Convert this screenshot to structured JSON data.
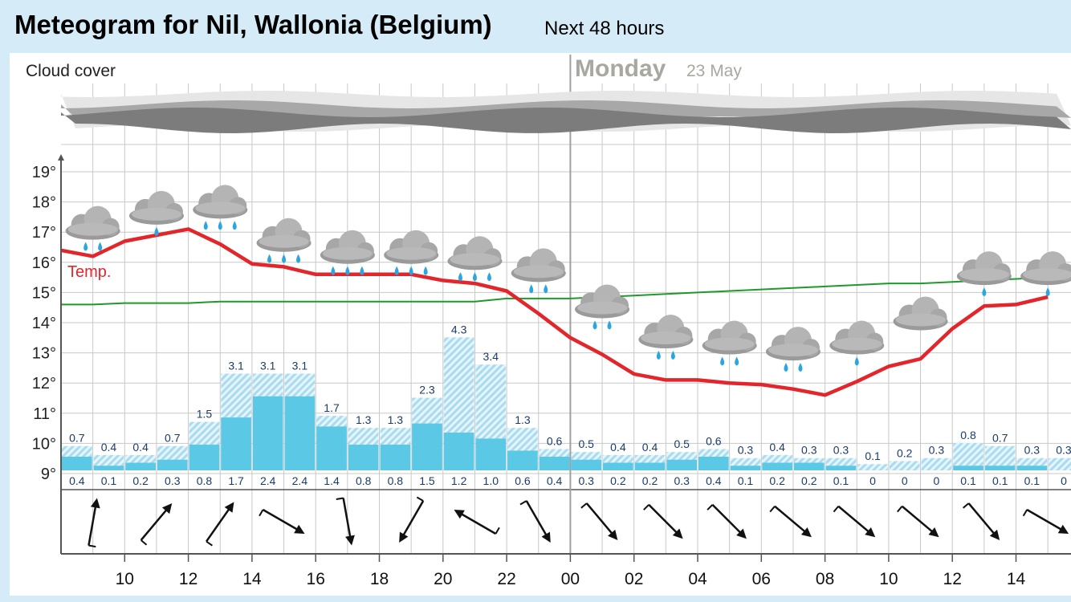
{
  "header": {
    "title": "Meteogram for Nil, Wallonia (Belgium)",
    "subtitle": "Next 48 hours"
  },
  "colors": {
    "temperature_line": "#e3262b",
    "dewpoint_line": "#1f9a2a",
    "precip_min": "#5bc8e6",
    "precip_max_hatch": "#a9dcef",
    "grid": "#c8c8c8",
    "day_separator": "#a0a0a0",
    "cloud_light": "#e6e6e6",
    "cloud_mid": "#a8a8a8",
    "cloud_dark": "#7c7c7c"
  },
  "chart_data": {
    "type": "line",
    "title": "Meteogram for Nil, Wallonia (Belgium)",
    "subtitle": "Next 48 hours",
    "cloud_label": "Cloud cover",
    "day_label": "Monday",
    "day_date": "23 May",
    "temp_label": "Temp.",
    "x_tick_labels": [
      "10",
      "12",
      "14",
      "16",
      "18",
      "20",
      "22",
      "00",
      "02",
      "04",
      "06",
      "08",
      "10",
      "12",
      "14"
    ],
    "y_ticks": [
      9,
      10,
      11,
      12,
      13,
      14,
      15,
      16,
      17,
      18,
      19
    ],
    "y_unit": "°",
    "ylim": [
      8.7,
      19.3
    ],
    "grid": true,
    "hours": [
      8,
      9,
      10,
      11,
      12,
      13,
      14,
      15,
      16,
      17,
      18,
      19,
      20,
      21,
      22,
      23,
      24,
      25,
      26,
      27,
      28,
      29,
      30,
      31,
      32,
      33,
      34,
      35,
      36,
      37,
      38,
      39
    ],
    "temperature": [
      16.4,
      16.2,
      16.7,
      16.9,
      17.1,
      16.6,
      15.95,
      15.85,
      15.6,
      15.6,
      15.6,
      15.6,
      15.4,
      15.3,
      15.05,
      14.3,
      13.5,
      12.95,
      12.3,
      12.1,
      12.1,
      12.0,
      11.95,
      11.8,
      11.6,
      12.05,
      12.55,
      12.8,
      13.8,
      14.55,
      14.6,
      14.85
    ],
    "dewpoint": [
      14.6,
      14.6,
      14.65,
      14.65,
      14.65,
      14.7,
      14.7,
      14.7,
      14.7,
      14.7,
      14.7,
      14.7,
      14.7,
      14.7,
      14.8,
      14.8,
      14.8,
      14.85,
      14.9,
      14.95,
      15.0,
      15.05,
      15.1,
      15.15,
      15.2,
      15.25,
      15.3,
      15.3,
      15.35,
      15.4,
      15.45,
      15.5
    ],
    "precip_max": [
      0.7,
      0.4,
      0.4,
      0.7,
      1.5,
      3.1,
      3.1,
      3.1,
      1.7,
      1.3,
      1.3,
      2.3,
      4.3,
      3.4,
      1.3,
      0.6,
      0.5,
      0.4,
      0.4,
      0.5,
      0.6,
      0.3,
      0.4,
      0.3,
      0.3,
      0.1,
      0.2,
      0.3,
      0.8,
      0.7,
      0.3,
      0.3
    ],
    "precip_max_labels": [
      "0.7",
      "0.4",
      "0.4",
      "0.7",
      "1.5",
      "3.1",
      "3.1",
      "3.1",
      "1.7",
      "1.3",
      "1.3",
      "2.3",
      "4.3",
      "3.4",
      "1.3",
      "0.6",
      "0.5",
      "0.4",
      "0.4",
      "0.5",
      "0.6",
      "0.3",
      "0.4",
      "0.3",
      "0.3",
      "0.1",
      "0.2",
      "0.3",
      "0.8",
      "0.7",
      "0.3",
      "0.3"
    ],
    "precip_min": [
      0.4,
      0.1,
      0.2,
      0.3,
      0.8,
      1.7,
      2.4,
      2.4,
      1.4,
      0.8,
      0.8,
      1.5,
      1.2,
      1.0,
      0.6,
      0.4,
      0.3,
      0.2,
      0.2,
      0.3,
      0.4,
      0.1,
      0.2,
      0.2,
      0.1,
      0,
      0,
      0,
      0.1,
      0.1,
      0.1,
      0
    ],
    "precip_min_labels": [
      "0.4",
      "0.1",
      "0.2",
      "0.3",
      "0.8",
      "1.7",
      "2.4",
      "2.4",
      "1.4",
      "0.8",
      "0.8",
      "1.5",
      "1.2",
      "1.0",
      "0.6",
      "0.4",
      "0.3",
      "0.2",
      "0.2",
      "0.3",
      "0.4",
      "0.1",
      "0.2",
      "0.2",
      "0.1",
      "0",
      "0",
      "0",
      "0.1",
      "0.1",
      "0.1",
      "0"
    ],
    "weather_symbols": [
      {
        "hour": 9,
        "temp": 17.2,
        "drops": 2
      },
      {
        "hour": 11,
        "temp": 17.7,
        "drops": 1
      },
      {
        "hour": 13,
        "temp": 17.9,
        "drops": 3
      },
      {
        "hour": 15,
        "temp": 16.8,
        "drops": 3
      },
      {
        "hour": 17,
        "temp": 16.4,
        "drops": 3
      },
      {
        "hour": 19,
        "temp": 16.4,
        "drops": 3
      },
      {
        "hour": 21,
        "temp": 16.2,
        "drops": 3
      },
      {
        "hour": 23,
        "temp": 15.8,
        "drops": 2
      },
      {
        "hour": 25,
        "temp": 14.6,
        "drops": 2
      },
      {
        "hour": 27,
        "temp": 13.6,
        "drops": 2
      },
      {
        "hour": 29,
        "temp": 13.4,
        "drops": 2
      },
      {
        "hour": 31,
        "temp": 13.2,
        "drops": 2
      },
      {
        "hour": 33,
        "temp": 13.4,
        "drops": 1
      },
      {
        "hour": 35,
        "temp": 14.2,
        "drops": 0
      },
      {
        "hour": 37,
        "temp": 15.7,
        "drops": 1
      },
      {
        "hour": 39,
        "temp": 15.7,
        "drops": 1
      }
    ],
    "wind_direction_from_deg": [
      190,
      220,
      215,
      300,
      350,
      30,
      120,
      330,
      320,
      315,
      315,
      310,
      310,
      310,
      320,
      300
    ]
  }
}
